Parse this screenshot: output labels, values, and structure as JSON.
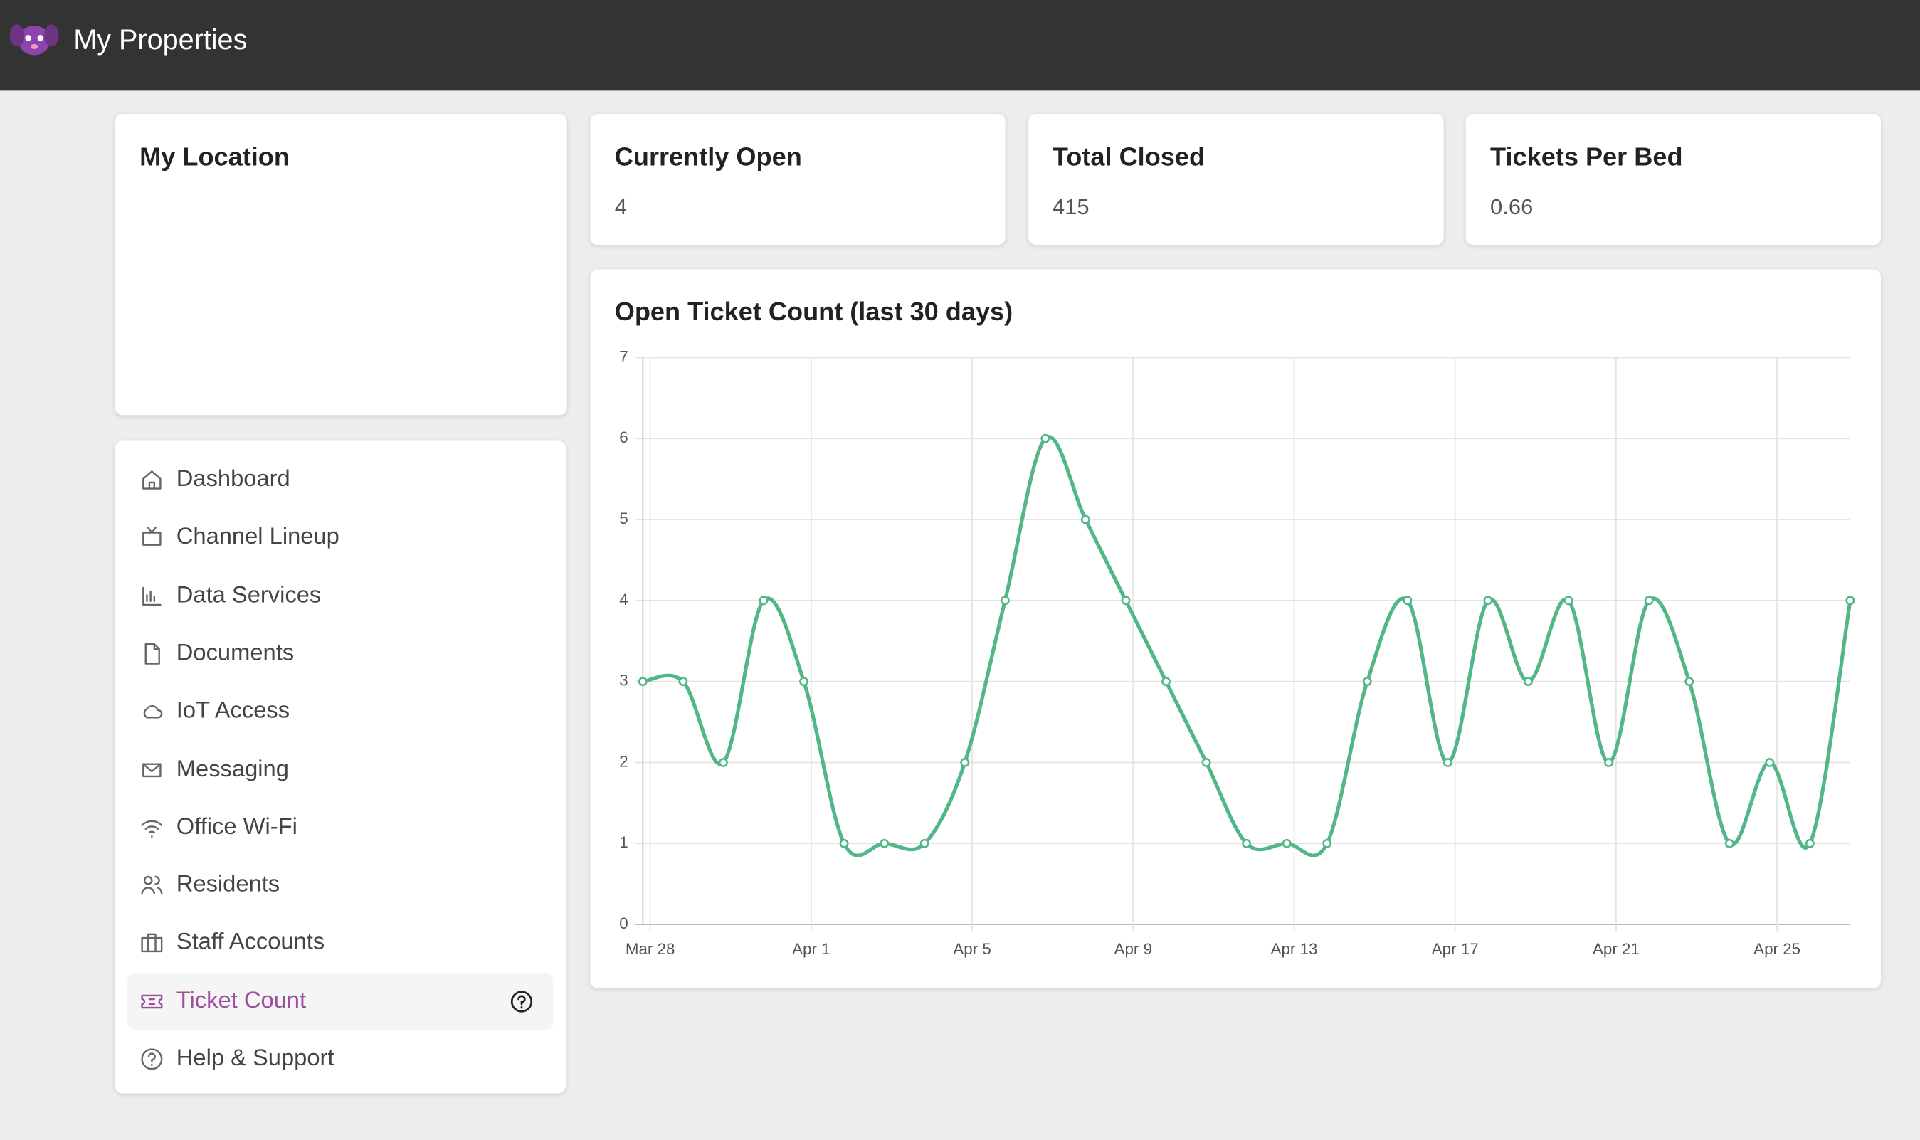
{
  "header": {
    "title": "My Properties"
  },
  "location_card": {
    "title": "My Location"
  },
  "stats": [
    {
      "title": "Currently Open",
      "value": 4
    },
    {
      "title": "Total Closed",
      "value": 415
    },
    {
      "title": "Tickets Per Bed",
      "value": 0.66
    }
  ],
  "nav": {
    "items": [
      "Dashboard",
      "Channel Lineup",
      "Data Services",
      "Documents",
      "IoT Access",
      "Messaging",
      "Office Wi-Fi",
      "Residents",
      "Staff Accounts",
      "Ticket Count",
      "Help & Support"
    ],
    "active_index": 9
  },
  "chart_data": {
    "type": "line",
    "title": "Open Ticket Count (last 30 days)",
    "categories": [
      "Mar 28",
      null,
      null,
      null,
      "Apr 1",
      null,
      null,
      null,
      "Apr 5",
      null,
      null,
      null,
      "Apr 9",
      null,
      null,
      null,
      "Apr 13",
      null,
      null,
      null,
      "Apr 17",
      null,
      null,
      null,
      "Apr 21",
      null,
      null,
      null,
      "Apr 25",
      null,
      null
    ],
    "values": [
      3,
      3,
      2,
      4,
      3,
      1,
      1,
      1,
      2,
      4,
      6,
      5,
      4,
      3,
      2,
      1,
      1,
      1,
      3,
      4,
      2,
      4,
      3,
      4,
      2,
      4,
      3,
      1,
      2,
      1,
      4
    ],
    "color": "#52b788",
    "ylim": [
      0,
      7
    ],
    "yticks": [
      0,
      1,
      2,
      3,
      4,
      5,
      6,
      7
    ],
    "grid": true
  }
}
